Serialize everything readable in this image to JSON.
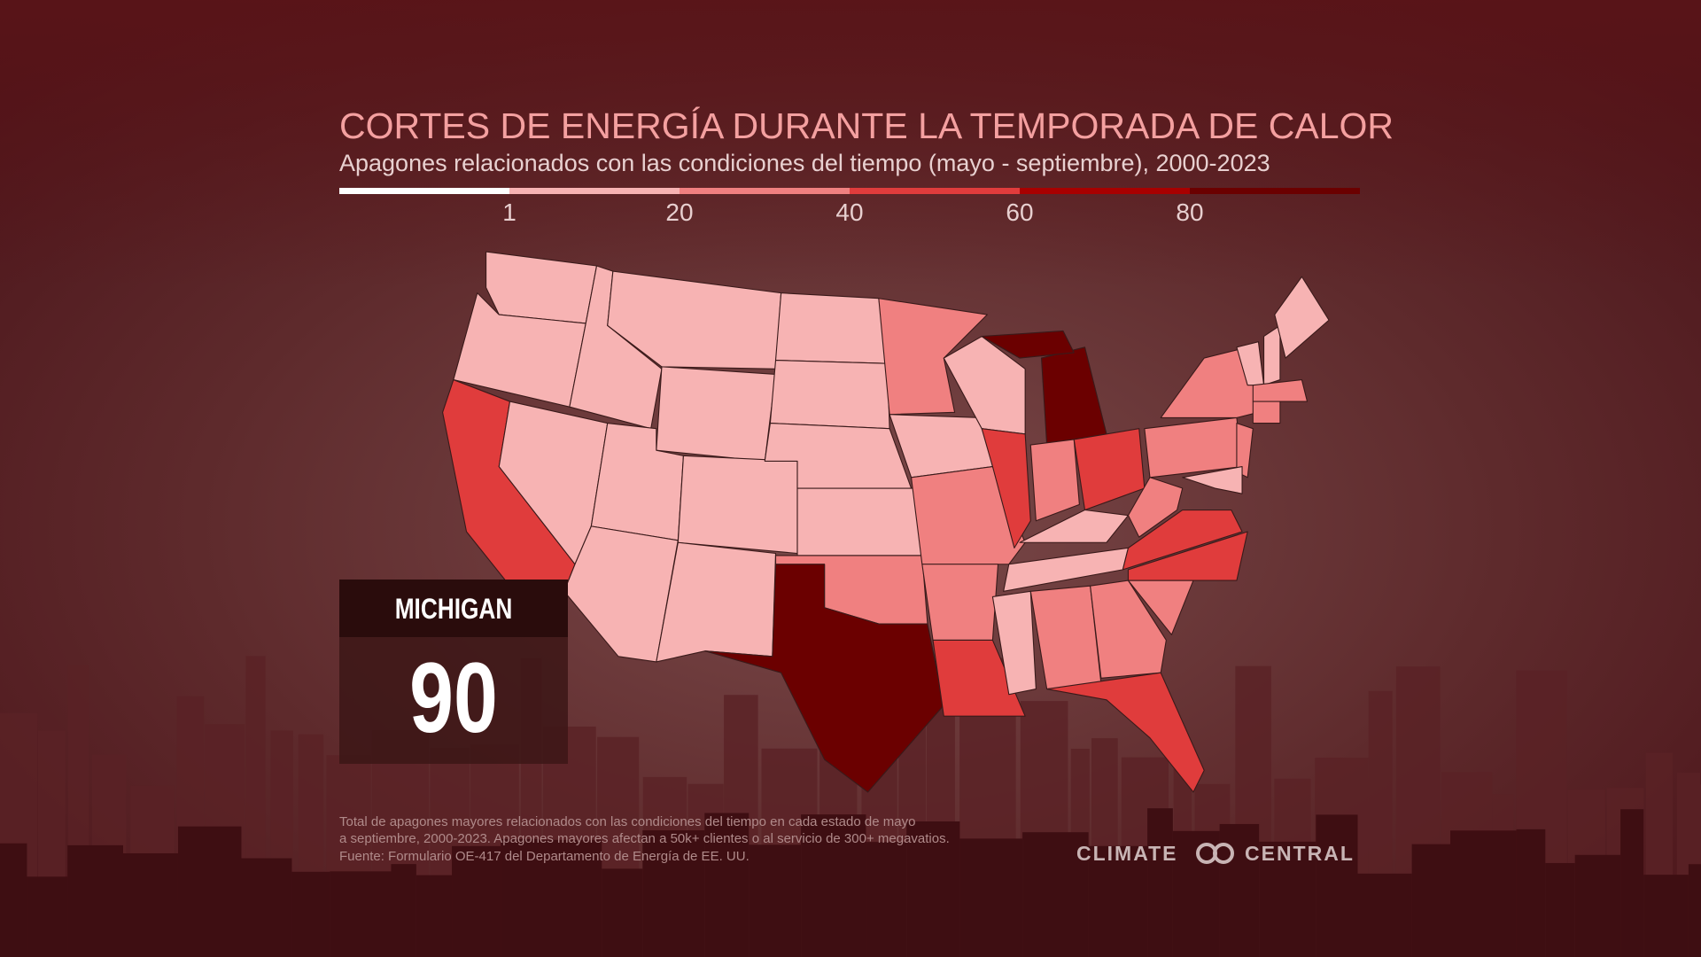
{
  "title": "CORTES DE ENERGÍA DURANTE LA TEMPORADA DE CALOR",
  "subtitle": "Apagones relacionados con las condiciones del tiempo (mayo - septiembre), 2000-2023",
  "legend": {
    "breaks": [
      1,
      20,
      40,
      60,
      80
    ],
    "colors": [
      "#ffffff",
      "#f7b3b3",
      "#f08080",
      "#e03c3c",
      "#a80000",
      "#6b0000"
    ]
  },
  "highlight": {
    "state": "MICHIGAN",
    "value": 90
  },
  "footnote": [
    "Total de apagones mayores relacionados con las condiciones del tiempo en cada estado de mayo",
    "a septiembre, 2000-2023. Apagones mayores afectan a 50k+ clientes o al servicio de 300+ megavatios.",
    "Fuente: Formulario OE-417 del Departamento de Energía de EE. UU."
  ],
  "logo": [
    "CLIMATE",
    "CENTRAL"
  ]
}
